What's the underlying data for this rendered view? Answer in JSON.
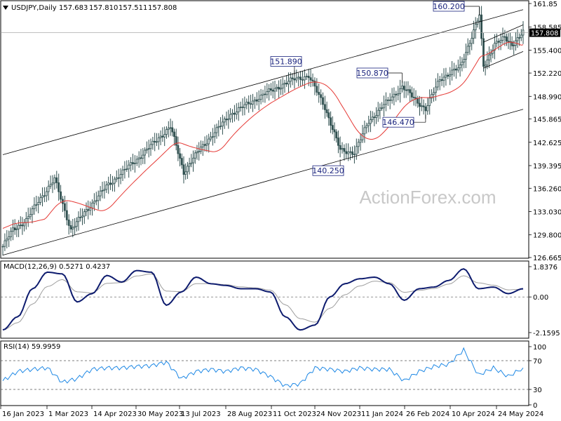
{
  "header": {
    "symbol": "USDJPY,Daily",
    "open": "157.683",
    "high": "157.810",
    "low": "157.511",
    "close": "157.808"
  },
  "watermark": "ActionForex.com",
  "colors": {
    "candle": "#2f4f4f",
    "ma": "#e53935",
    "macd": "#0d1b6e",
    "signal": "#9e9e9e",
    "rsi": "#1e88e5",
    "channel": "#000000",
    "annotation": "#1a237e"
  },
  "chart_data": [
    {
      "type": "candlestick",
      "title": "USDJPY,Daily",
      "ylim": [
        126.665,
        161.85
      ],
      "y_ticks": [
        "161.85",
        "158.585",
        "155.400",
        "152.220",
        "148.990",
        "145.865",
        "142.625",
        "139.395",
        "136.260",
        "133.030",
        "129.800",
        "126.665"
      ],
      "x_ticks": [
        "16 Jan 2023",
        "1 Mar 2023",
        "14 Apr 2023",
        "30 May 2023",
        "13 Jul 2023",
        "28 Aug 2023",
        "11 Oct 2023",
        "24 Nov 2023",
        "11 Jan 2024",
        "26 Feb 2024",
        "10 Apr 2024",
        "24 May 2024"
      ],
      "key_points": [
        {
          "date": "2023-01-16",
          "close": 128.2
        },
        {
          "date": "2023-01-26",
          "close": 130.5
        },
        {
          "date": "2023-02-08",
          "close": 131.8
        },
        {
          "date": "2023-02-20",
          "close": 134.5
        },
        {
          "date": "2023-03-08",
          "close": 137.5
        },
        {
          "date": "2023-03-24",
          "close": 130.5
        },
        {
          "date": "2023-04-10",
          "close": 133.5
        },
        {
          "date": "2023-04-28",
          "close": 136.5
        },
        {
          "date": "2023-05-30",
          "close": 140.5
        },
        {
          "date": "2023-06-30",
          "close": 144.8
        },
        {
          "date": "2023-07-13",
          "close": 138.5
        },
        {
          "date": "2023-07-28",
          "close": 141.5
        },
        {
          "date": "2023-08-28",
          "close": 146.5
        },
        {
          "date": "2023-10-03",
          "close": 149.5
        },
        {
          "date": "2023-10-30",
          "close": 151.4
        },
        {
          "date": "2023-11-13",
          "close": 151.8
        },
        {
          "date": "2023-11-29",
          "close": 147.5
        },
        {
          "date": "2023-12-14",
          "close": 141.5
        },
        {
          "date": "2023-12-28",
          "close": 141.2
        },
        {
          "date": "2024-01-11",
          "close": 145.5
        },
        {
          "date": "2024-01-24",
          "close": 147.5
        },
        {
          "date": "2024-02-13",
          "close": 150.3
        },
        {
          "date": "2024-03-07",
          "close": 147.2
        },
        {
          "date": "2024-03-21",
          "close": 151.4
        },
        {
          "date": "2024-04-10",
          "close": 153.0
        },
        {
          "date": "2024-04-29",
          "close": 160.2
        },
        {
          "date": "2024-05-03",
          "close": 153.0
        },
        {
          "date": "2024-05-14",
          "close": 156.3
        },
        {
          "date": "2024-05-24",
          "close": 157.0
        },
        {
          "date": "2024-05-31",
          "close": 156.2
        },
        {
          "date": "2024-06-11",
          "close": 157.8
        }
      ],
      "annotations": [
        {
          "label": "151.890",
          "value": 151.89
        },
        {
          "label": "140.250",
          "value": 140.25
        },
        {
          "label": "150.870",
          "value": 150.87
        },
        {
          "label": "146.470",
          "value": 146.47
        },
        {
          "label": "160.200",
          "value": 160.2
        }
      ],
      "current_price": "157.808"
    },
    {
      "type": "line",
      "title": "MACD(12,26,9) 0.5271 0.4237",
      "ylim": [
        -2.1595,
        1.8376
      ],
      "y_ticks": [
        "1.8376",
        "0.00",
        "-2.1595"
      ],
      "series": [
        {
          "name": "MACD",
          "values": [
            -2.0,
            -1.2,
            0.5,
            1.5,
            1.4,
            -0.3,
            0.2,
            1.3,
            0.9,
            1.6,
            1.5,
            -0.5,
            0.3,
            1.2,
            0.8,
            0.7,
            0.5,
            0.5,
            0.3,
            -1.2,
            -2.0,
            -1.7,
            0.0,
            0.8,
            1.1,
            1.2,
            0.8,
            -0.2,
            0.5,
            0.6,
            1.0,
            1.7,
            0.5,
            0.6,
            0.2,
            0.5
          ]
        }
      ]
    },
    {
      "type": "line",
      "title": "RSI(14) 59.9959",
      "ylim": [
        0,
        100
      ],
      "y_ticks": [
        "100",
        "70",
        "30",
        "0"
      ],
      "series": [
        {
          "name": "RSI",
          "values": [
            42,
            55,
            58,
            60,
            40,
            45,
            58,
            60,
            60,
            62,
            63,
            68,
            45,
            55,
            58,
            55,
            60,
            58,
            48,
            35,
            38,
            60,
            58,
            55,
            60,
            58,
            58,
            42,
            55,
            62,
            65,
            85,
            50,
            60,
            48,
            60
          ]
        }
      ]
    }
  ]
}
